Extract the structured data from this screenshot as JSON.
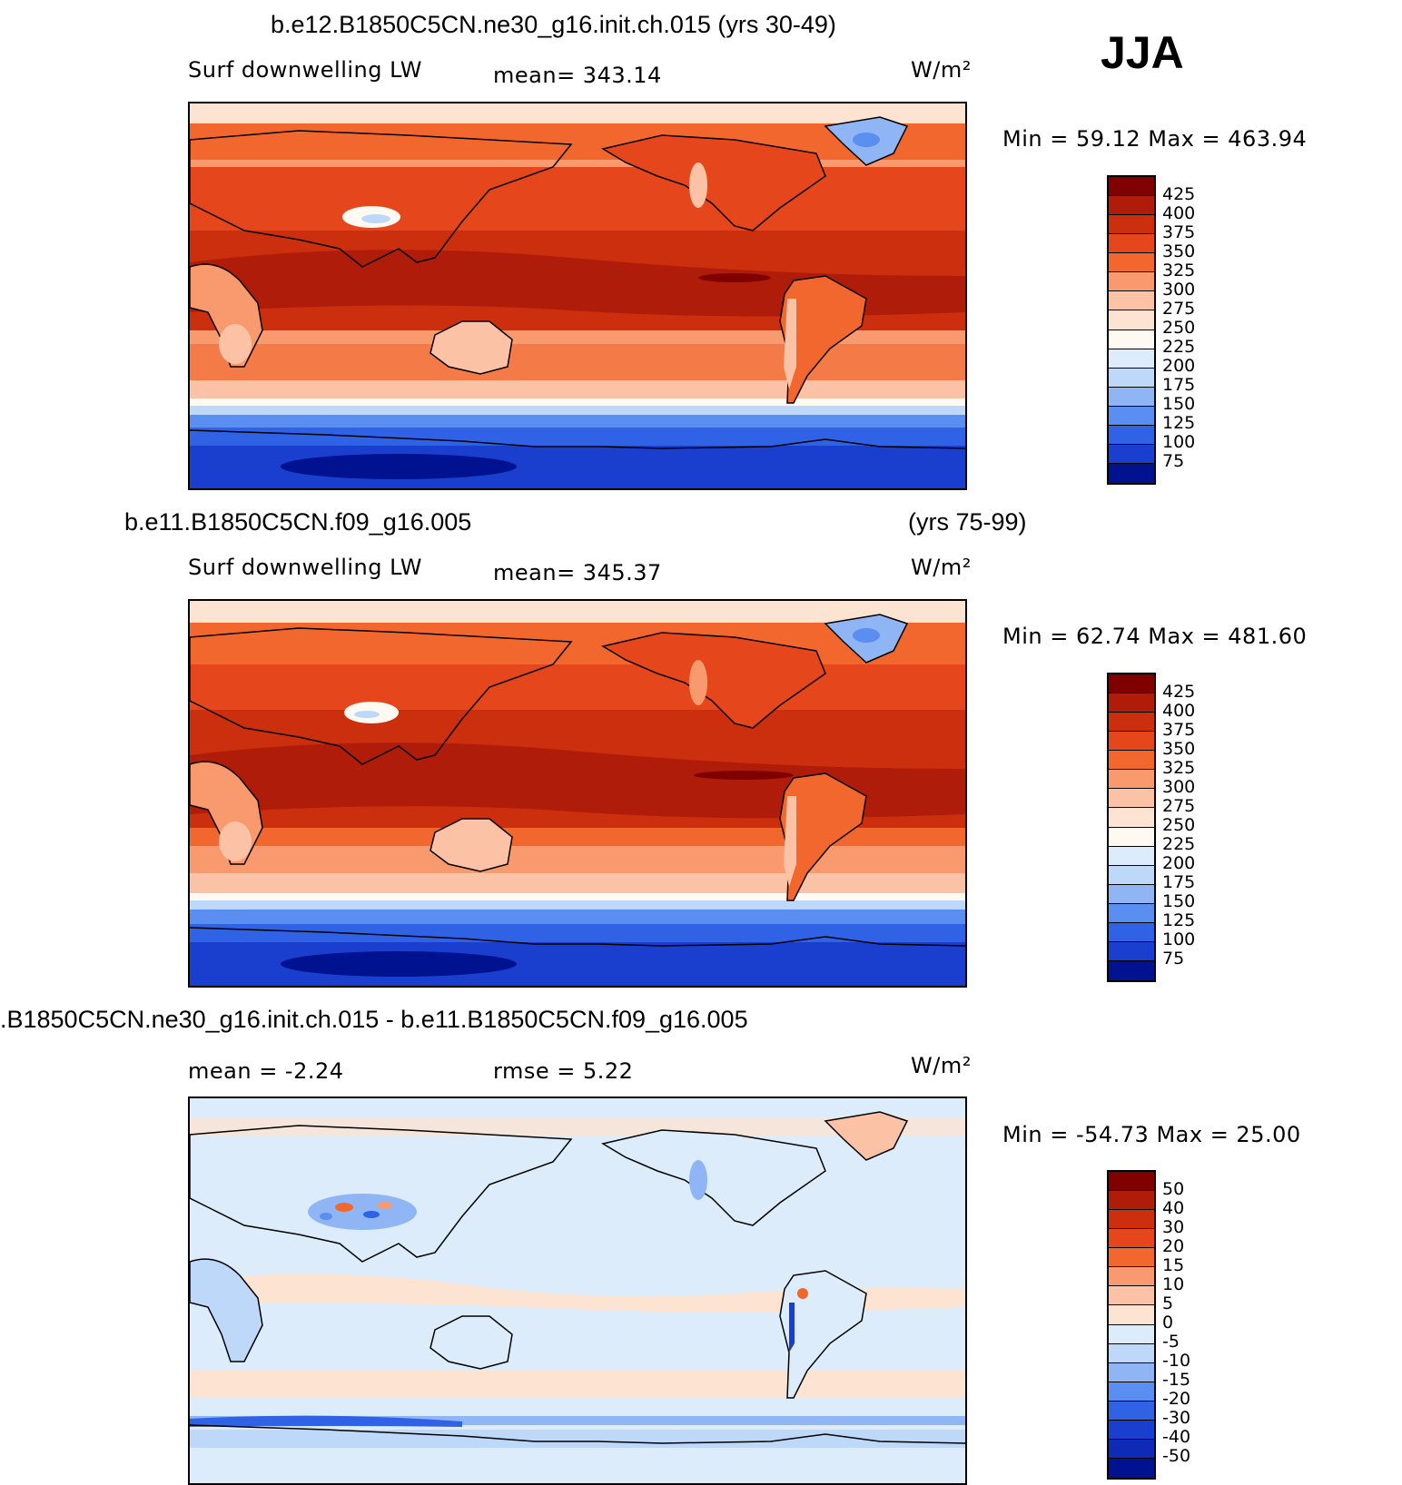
{
  "season": "JJA",
  "panels": [
    {
      "title": "b.e12.B1850C5CN.ne30_g16.init.ch.015 (yrs 30-49)",
      "title_right": "",
      "var_label": "Surf downwelling LW",
      "stat_text": "mean= 343.14",
      "units": "W/m²",
      "minmax": "Min =   59.12 Max = 463.94",
      "levels": [
        "425",
        "400",
        "375",
        "350",
        "325",
        "300",
        "275",
        "250",
        "225",
        "200",
        "175",
        "150",
        "125",
        "100",
        "75"
      ],
      "colors": [
        "#800000",
        "#b01c0a",
        "#cc2f0d",
        "#e5461c",
        "#f2672e",
        "#f89a6d",
        "#fcc2a5",
        "#fde3d2",
        "#fefaf2",
        "#dcecfb",
        "#bdd8f9",
        "#8fb5f5",
        "#5a8ef0",
        "#2f62e4",
        "#1a3fcf",
        "#00128f"
      ],
      "chart_data": {
        "type": "heatmap",
        "title": "b.e12.B1850C5CN.ne30_g16.init.ch.015 (yrs 30-49)",
        "variable": "Surf downwelling LW",
        "units": "W/m²",
        "mean": 343.14,
        "min": 59.12,
        "max": 463.94,
        "contour_levels": [
          75,
          100,
          125,
          150,
          175,
          200,
          225,
          250,
          275,
          300,
          325,
          350,
          375,
          400,
          425
        ]
      }
    },
    {
      "title": "b.e11.B1850C5CN.f09_g16.005",
      "title_right": "(yrs 75-99)",
      "var_label": "Surf downwelling LW",
      "stat_text": "mean= 345.37",
      "units": "W/m²",
      "minmax": "Min =   62.74 Max = 481.60",
      "levels": [
        "425",
        "400",
        "375",
        "350",
        "325",
        "300",
        "275",
        "250",
        "225",
        "200",
        "175",
        "150",
        "125",
        "100",
        "75"
      ],
      "colors": [
        "#800000",
        "#b01c0a",
        "#cc2f0d",
        "#e5461c",
        "#f2672e",
        "#f89a6d",
        "#fcc2a5",
        "#fde3d2",
        "#fefaf2",
        "#dcecfb",
        "#bdd8f9",
        "#8fb5f5",
        "#5a8ef0",
        "#2f62e4",
        "#1a3fcf",
        "#00128f"
      ],
      "chart_data": {
        "type": "heatmap",
        "title": "b.e11.B1850C5CN.f09_g16.005 (yrs 75-99)",
        "variable": "Surf downwelling LW",
        "units": "W/m²",
        "mean": 345.37,
        "min": 62.74,
        "max": 481.6,
        "contour_levels": [
          75,
          100,
          125,
          150,
          175,
          200,
          225,
          250,
          275,
          300,
          325,
          350,
          375,
          400,
          425
        ]
      }
    },
    {
      "title": ".B1850C5CN.ne30_g16.init.ch.015 - b.e11.B1850C5CN.f09_g16.005",
      "title_right": "",
      "var_label": "mean =   -2.24",
      "stat_text": "rmse =    5.22",
      "units": "W/m²",
      "minmax": "Min = -54.73 Max =   25.00",
      "levels": [
        "50",
        "40",
        "30",
        "20",
        "15",
        "10",
        "5",
        "0",
        "-5",
        "-10",
        "-15",
        "-20",
        "-30",
        "-40",
        "-50"
      ],
      "colors": [
        "#800000",
        "#b01c0a",
        "#cc2f0d",
        "#e5461c",
        "#f2672e",
        "#f89a6d",
        "#fcc2a5",
        "#fde3d2",
        "#dcecfb",
        "#bdd8f9",
        "#8fb5f5",
        "#5a8ef0",
        "#2f62e4",
        "#1a3fcf",
        "#0e2bb8",
        "#00128f"
      ],
      "chart_data": {
        "type": "heatmap",
        "title": ".B1850C5CN.ne30_g16.init.ch.015 - b.e11.B1850C5CN.f09_g16.005",
        "units": "W/m²",
        "mean": -2.24,
        "rmse": 5.22,
        "min": -54.73,
        "max": 25.0,
        "contour_levels": [
          -50,
          -40,
          -30,
          -20,
          -15,
          -10,
          -5,
          0,
          5,
          10,
          15,
          20,
          30,
          40,
          50
        ]
      }
    }
  ]
}
